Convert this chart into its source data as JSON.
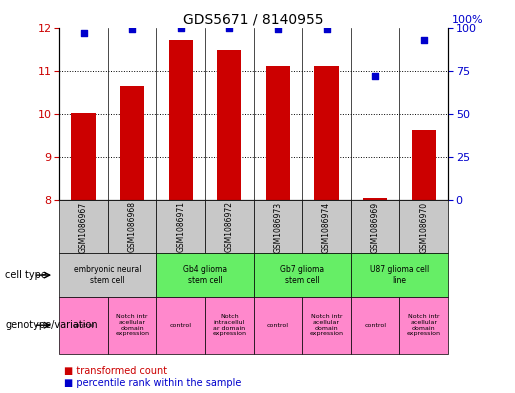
{
  "title": "GDS5671 / 8140955",
  "samples": [
    "GSM1086967",
    "GSM1086968",
    "GSM1086971",
    "GSM1086972",
    "GSM1086973",
    "GSM1086974",
    "GSM1086969",
    "GSM1086970"
  ],
  "bar_values": [
    10.02,
    10.65,
    11.72,
    11.47,
    11.1,
    11.1,
    8.05,
    9.62
  ],
  "dot_values": [
    97,
    99,
    100,
    100,
    99,
    99,
    72,
    93
  ],
  "ylim_left": [
    8,
    12
  ],
  "ylim_right": [
    0,
    100
  ],
  "yticks_left": [
    8,
    9,
    10,
    11,
    12
  ],
  "yticks_right": [
    0,
    25,
    50,
    75,
    100
  ],
  "bar_color": "#cc0000",
  "dot_color": "#0000cc",
  "cell_types": [
    {
      "label": "embryonic neural\nstem cell",
      "span": [
        0,
        2
      ],
      "color": "#c8c8c8"
    },
    {
      "label": "Gb4 glioma\nstem cell",
      "span": [
        2,
        4
      ],
      "color": "#66ee66"
    },
    {
      "label": "Gb7 glioma\nstem cell",
      "span": [
        4,
        6
      ],
      "color": "#66ee66"
    },
    {
      "label": "U87 glioma cell\nline",
      "span": [
        6,
        8
      ],
      "color": "#66ee66"
    }
  ],
  "genotype_variations": [
    {
      "label": "control",
      "span": [
        0,
        1
      ],
      "color": "#ff88cc"
    },
    {
      "label": "Notch intr\nacellular\ndomain\nexpression",
      "span": [
        1,
        2
      ],
      "color": "#ff88cc"
    },
    {
      "label": "control",
      "span": [
        2,
        3
      ],
      "color": "#ff88cc"
    },
    {
      "label": "Notch\nintracellul\nar domain\nexpression",
      "span": [
        3,
        4
      ],
      "color": "#ff88cc"
    },
    {
      "label": "control",
      "span": [
        4,
        5
      ],
      "color": "#ff88cc"
    },
    {
      "label": "Notch intr\nacellular\ndomain\nexpression",
      "span": [
        5,
        6
      ],
      "color": "#ff88cc"
    },
    {
      "label": "control",
      "span": [
        6,
        7
      ],
      "color": "#ff88cc"
    },
    {
      "label": "Notch intr\nacellular\ndomain\nexpression",
      "span": [
        7,
        8
      ],
      "color": "#ff88cc"
    }
  ],
  "legend_transformed": "transformed count",
  "legend_percentile": "percentile rank within the sample",
  "label_cell_type": "cell type",
  "label_genotype": "genotype/variation",
  "sample_box_color": "#c8c8c8",
  "fig_width": 5.15,
  "fig_height": 3.93,
  "dpi": 100
}
